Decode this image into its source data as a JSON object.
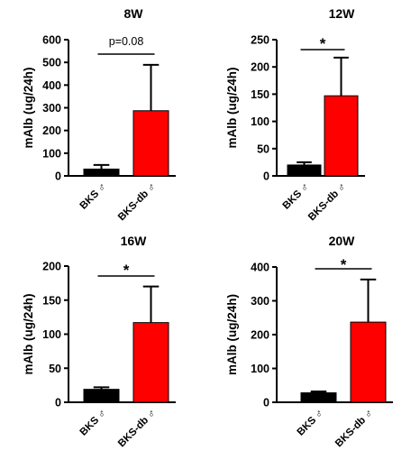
{
  "chart_data": [
    {
      "type": "bar",
      "title": "8W",
      "ylabel": "mAlb (ug/24h)",
      "categories": [
        "BKS ♂",
        "BKS-db ♂"
      ],
      "values": [
        30,
        287
      ],
      "errors": [
        18,
        202
      ],
      "colors": [
        "#000000",
        "#ff0000"
      ],
      "ylim": [
        0,
        600
      ],
      "yticks": [
        0,
        100,
        200,
        300,
        400,
        500,
        600
      ],
      "significance": "p=0.08"
    },
    {
      "type": "bar",
      "title": "12W",
      "ylabel": "mAlb (ug/24h)",
      "categories": [
        "BKS ♂",
        "BKS-db ♂"
      ],
      "values": [
        20,
        147
      ],
      "errors": [
        5,
        70
      ],
      "colors": [
        "#000000",
        "#ff0000"
      ],
      "ylim": [
        0,
        250
      ],
      "yticks": [
        0,
        50,
        100,
        150,
        200,
        250
      ],
      "significance": "*"
    },
    {
      "type": "bar",
      "title": "16W",
      "ylabel": "mAlb (ug/24h)",
      "categories": [
        "BKS ♂",
        "BKS-db ♂"
      ],
      "values": [
        19,
        117
      ],
      "errors": [
        3,
        53
      ],
      "colors": [
        "#000000",
        "#ff0000"
      ],
      "ylim": [
        0,
        200
      ],
      "yticks": [
        0,
        50,
        100,
        150,
        200
      ],
      "significance": "*"
    },
    {
      "type": "bar",
      "title": "20W",
      "ylabel": "mAlb (ug/24h)",
      "categories": [
        "BKS ♂",
        "BKS-db ♂"
      ],
      "values": [
        28,
        237
      ],
      "errors": [
        4,
        126
      ],
      "colors": [
        "#000000",
        "#ff0000"
      ],
      "ylim": [
        0,
        400
      ],
      "yticks": [
        0,
        100,
        200,
        300,
        400
      ],
      "significance": "*"
    }
  ]
}
